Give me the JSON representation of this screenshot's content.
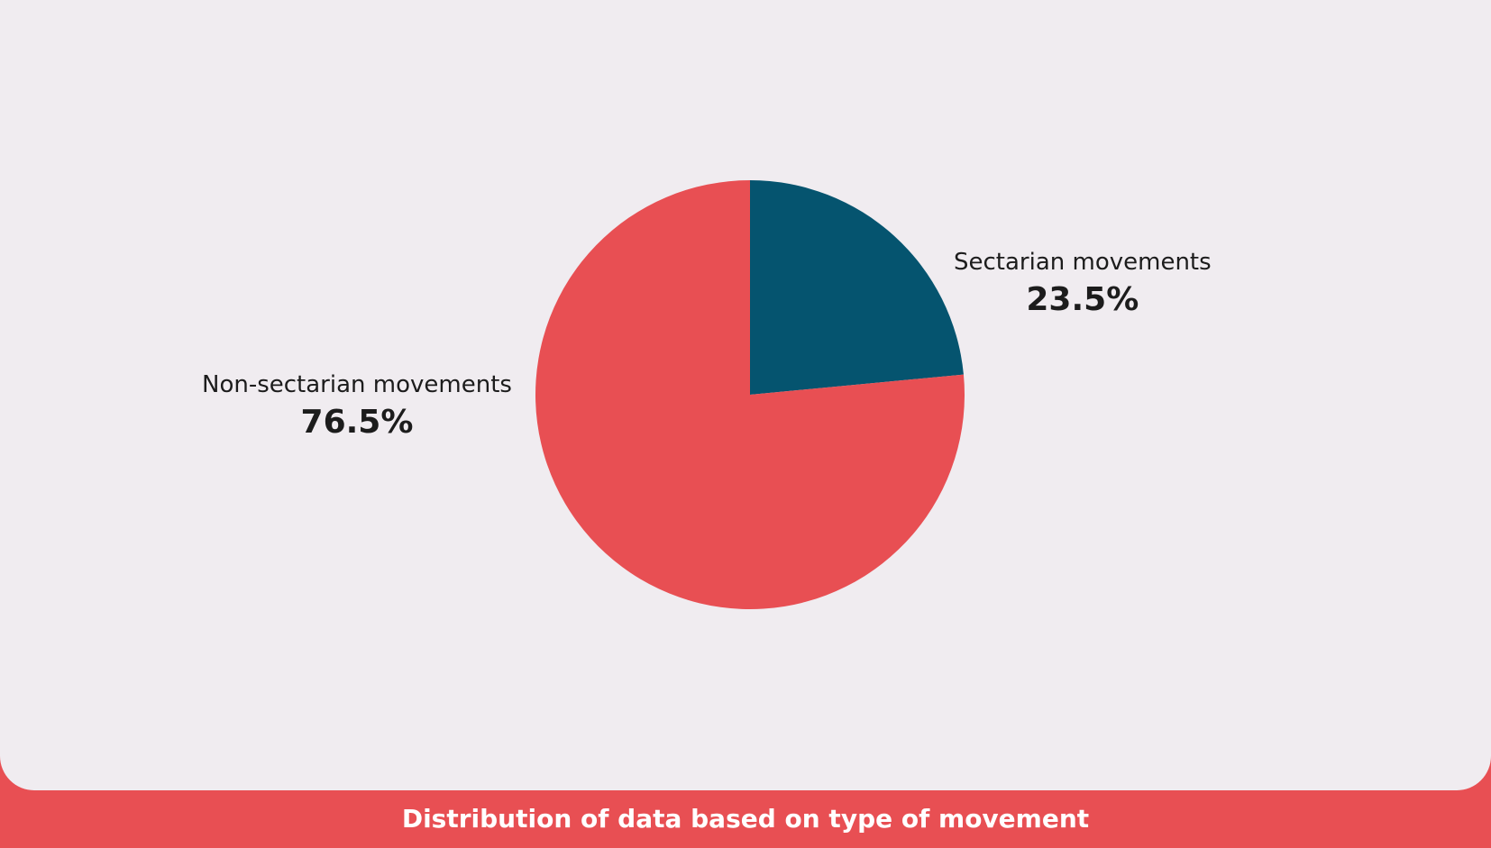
{
  "chart_data": {
    "type": "pie",
    "title": "Distribution of data based on type of movement",
    "slices": [
      {
        "label": "Sectarian movements",
        "value": 23.5,
        "display": "23.5%",
        "color": "#05546f"
      },
      {
        "label": "Non-sectarian movements",
        "value": 76.5,
        "display": "76.5%",
        "color": "#e84f53"
      }
    ],
    "start_angle": "12 o'clock",
    "direction": "clockwise",
    "legend": "none"
  }
}
